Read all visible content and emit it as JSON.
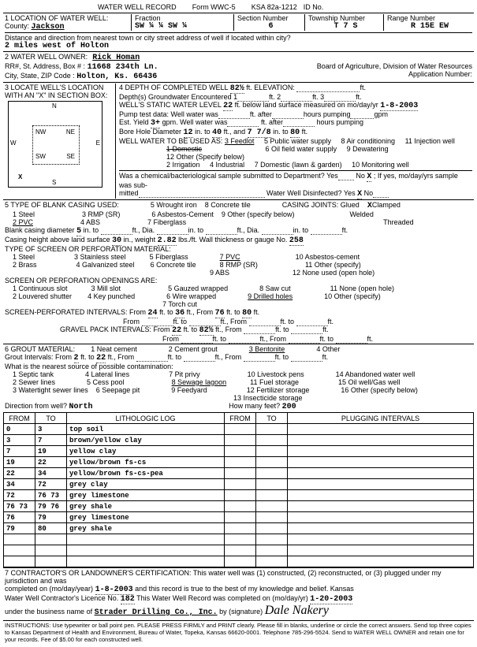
{
  "form": {
    "header": "WATER WELL RECORD",
    "form_no": "Form WWC-5",
    "ksa": "KSA 82a-1212",
    "id": "ID No."
  },
  "loc": {
    "section_title": "1 LOCATION OF WATER WELL:",
    "county_label": "County:",
    "county": "Jackson",
    "fraction_label": "Fraction",
    "fraction": "SW ¼ ¼ SW ¼",
    "section_label": "Section Number",
    "section": "6",
    "township_label": "Township Number",
    "township": "T 7 S",
    "range_label": "Range Number",
    "range": "R 15E EW",
    "dist_label": "Distance and direction from nearest town or city street address of well if located within city?",
    "dist": "2 miles west of Holton"
  },
  "owner": {
    "title": "2 WATER WELL OWNER:",
    "name": "Rick Homan",
    "addr_label": "RR#, St. Address, Box #",
    "addr": "11668 234th Ln.",
    "city_label": "City, State, ZIP Code",
    "city": "Holton, Ks. 66436",
    "board": "Board of Agriculture, Division of Water Resources",
    "appno": "Application Number:"
  },
  "locate": {
    "title": "3 LOCATE WELL'S LOCATION WITH AN \"X\" IN SECTION BOX:"
  },
  "depth": {
    "title": "4 DEPTH OF COMPLETED WELL",
    "depth": "82½",
    "elev_label": "ft. ELEVATION:",
    "gw_label": "Depth(s) Groundwater Encountered",
    "gw1": "1",
    "gw2": "2",
    "gw3": "3",
    "swl_label": "WELL'S STATIC WATER LEVEL",
    "swl": "22",
    "swl_tail": "ft. below land surface measured on mo/day/yr",
    "swl_date": "1-8-2003",
    "pump_label": "Pump test data: Well water was",
    "hrs_label": "hours pumping",
    "gpm_label": "gpm",
    "est_label": "Est. Yield",
    "est": "3+",
    "est_gpm": "gpm.",
    "est_well": "Well water was",
    "est_after": "ft. after",
    "bore_label": "Bore Hole Diameter",
    "bore_d": "12",
    "bore_to": "40",
    "bore_and": "7 7/8",
    "bore_to2": "80",
    "use_label": "WELL WATER TO BE USED AS:",
    "uses": [
      "1 Domestic",
      "2 Irrigation",
      "3 Feedlot",
      "4 Industrial",
      "5 Public water supply",
      "6 Oil field water supply",
      "7 Domestic (lawn & garden)",
      "8 Air conditioning",
      "9 Dewatering",
      "10 Monitoring well",
      "11 Injection well",
      "12 Other (Specify below)"
    ],
    "chem_q": "Was a chemical/bacteriological sample submitted to Department? Yes",
    "chem_no": "No",
    "chem_x": "X",
    "chem_tail": "; If yes, mo/day/yrs sample was sub-",
    "mitted_row": "mitted",
    "disinf": "Water Well Disinfected? Yes",
    "disinf_x": "X",
    "disinf_no": "No"
  },
  "casing": {
    "title": "5 TYPE OF BLANK CASING USED:",
    "opts": [
      "1 Steel",
      "2 PVC",
      "3 RMP (SR)",
      "4 ABS",
      "5 Wrought iron",
      "6 Asbestos-Cement",
      "7 Fiberglass",
      "8 Concrete tile",
      "9 Other (specify below)"
    ],
    "joints_label": "CASING JOINTS: Glued",
    "joints_x": "X",
    "j2": "Clamped",
    "j3": "Welded",
    "j4": "Threaded",
    "bcd_label": "Blank casing diameter",
    "bcd": "5",
    "ht_label": "Casing height above land surface",
    "ht": "30",
    "wt": "2.82",
    "wall": "258",
    "screen_title": "TYPE OF SCREEN OR PERFORATION MATERIAL:",
    "sopts": [
      "1 Steel",
      "2 Brass",
      "3 Stainless steel",
      "4 Galvanized steel",
      "5 Fiberglass",
      "6 Concrete tile",
      "7 PVC",
      "8 RMP (SR)",
      "9 ABS",
      "10 Asbestos-cement",
      "11 Other (specify)",
      "12 None used (open hole)"
    ],
    "open_title": "SCREEN OR PERFORATION OPENINGS ARE:",
    "oopts": [
      "1 Continuous slot",
      "2 Louvered shutter",
      "3 Mill slot",
      "4 Key punched",
      "5 Gauzed wrapped",
      "6 Wire wrapped",
      "7 Torch cut",
      "8 Saw cut",
      "9 Drilled holes",
      "10 Other (specify)",
      "11 None (open hole)"
    ],
    "sp_label": "SCREEN-PERFORATED INTERVALS: From",
    "sp_f1": "24",
    "sp_t1": "36",
    "sp_f2": "76",
    "sp_t2": "80",
    "gp_label": "GRAVEL PACK INTERVALS: From",
    "gp_f1": "22",
    "gp_t1": "82½"
  },
  "grout": {
    "title": "6 GROUT MATERIAL:",
    "opts": [
      "1 Neat cement",
      "2 Cement grout",
      "3 Bentonite",
      "4 Other"
    ],
    "gi_label": "Grout Intervals: From",
    "gi_f": "2",
    "gi_t": "22",
    "contam": "What is the nearest source of possible contamination:",
    "copts": [
      "1 Septic tank",
      "2 Sewer lines",
      "3 Watertight sewer lines",
      "4 Lateral lines",
      "5 Cess pool",
      "6 Seepage pit",
      "7 Pit privy",
      "8 Sewage lagoon",
      "9 Feedyard",
      "10 Livestock pens",
      "11 Fuel storage",
      "12 Fertilizer storage",
      "13 Insecticide storage",
      "14 Abandoned water well",
      "15 Oil well/Gas well",
      "16 Other (specify below)"
    ],
    "dir_label": "Direction from well?",
    "dir": "North",
    "hm_label": "How many feet?",
    "hm": "200"
  },
  "log": {
    "headers": [
      "FROM",
      "TO",
      "LITHOLOGIC LOG",
      "FROM",
      "TO",
      "PLUGGING INTERVALS"
    ],
    "rows": [
      [
        "0",
        "3",
        "top soil",
        "",
        "",
        ""
      ],
      [
        "3",
        "7",
        "brown/yellow clay",
        "",
        "",
        ""
      ],
      [
        "7",
        "19",
        "yellow clay",
        "",
        "",
        ""
      ],
      [
        "19",
        "22",
        "yellow/brown fs-cs",
        "",
        "",
        ""
      ],
      [
        "22",
        "34",
        "yellow/brown fs-cs-pea",
        "",
        "",
        ""
      ],
      [
        "34",
        "72",
        "grey clay",
        "",
        "",
        ""
      ],
      [
        "72",
        "76 73",
        "grey limestone",
        "",
        "",
        ""
      ],
      [
        "76 73",
        "79 76",
        "grey shale",
        "",
        "",
        ""
      ],
      [
        "76",
        "79",
        "grey limestone",
        "",
        "",
        ""
      ],
      [
        "79",
        "80",
        "grey shale",
        "",
        "",
        ""
      ],
      [
        "",
        "",
        "",
        "",
        "",
        ""
      ],
      [
        "",
        "",
        "",
        "",
        "",
        ""
      ],
      [
        "",
        "",
        "",
        "",
        "",
        ""
      ]
    ]
  },
  "cert": {
    "title": "7 CONTRACTOR'S OR LANDOWNER'S CERTIFICATION:",
    "text1": "This water well was (1) constructed, (2) reconstructed, or (3) plugged under my jurisdiction and was",
    "comp_label": "completed on (mo/day/year)",
    "comp": "1-8-2003",
    "text2": "and this record is true to the best of my knowledge and belief. Kansas",
    "lic_label": "Water Well Contractor's Licence No.",
    "lic": "182",
    "text3": "This Water Well Record was completed on (mo/day/yr)",
    "comp2": "1-20-2003",
    "biz_label": "under the business name of",
    "biz": "Strader Drilling Co., Inc.",
    "sig_label": "by (signature)",
    "sig": "Dale Nakery"
  },
  "inst": "INSTRUCTIONS: Use typewriter or ball point pen. PLEASE PRESS FIRMLY and PRINT clearly. Please fill in blanks, underline or circle the correct answers. Send top three copies to Kansas Department of Health and Environment, Bureau of Water, Topeka, Kansas 66620-0001. Telephone 785-296-5524. Send to WATER WELL OWNER and retain one for your records. Fee of $5.00 for each constructed well."
}
